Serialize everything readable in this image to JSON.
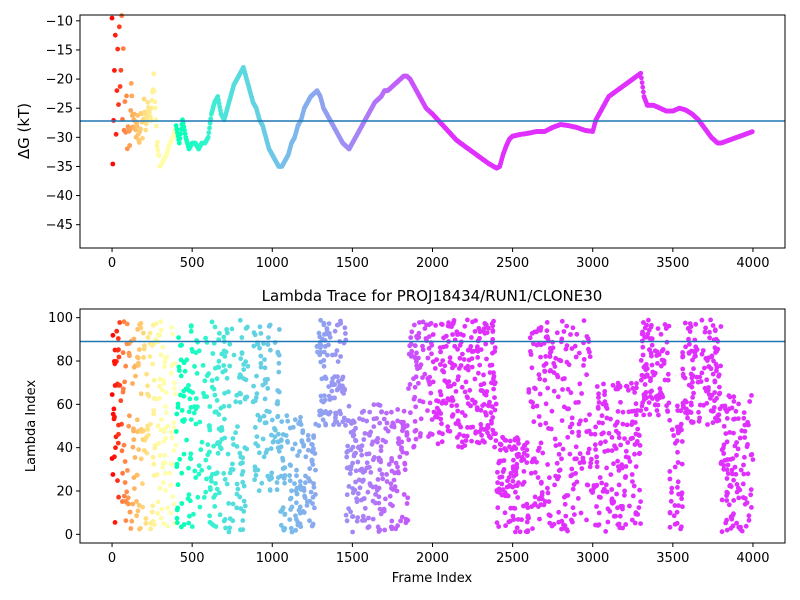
{
  "chart_data": [
    {
      "type": "scatter",
      "title": "",
      "xlabel": "",
      "ylabel": "ΔG (kT)",
      "xlim": [
        -200,
        4200
      ],
      "ylim": [
        -49,
        -9
      ],
      "xticks": [
        0,
        500,
        1000,
        1500,
        2000,
        2500,
        3000,
        3500,
        4000
      ],
      "xtick_labels": [
        "0",
        "500",
        "1000",
        "1500",
        "2000",
        "2500",
        "3000",
        "3500",
        "4000"
      ],
      "yticks": [
        -45,
        -40,
        -35,
        -30,
        -25,
        -20,
        -15,
        -10
      ],
      "ytick_labels": [
        "−45",
        "−40",
        "−35",
        "−30",
        "−25",
        "−20",
        "−15",
        "−10"
      ],
      "hline": -27.2,
      "colormap": "rainbow",
      "color_note": "points colored by current lambda window: red early, through orange/green/cyan/blue, to purple late",
      "points": [
        [
          0,
          -10
        ],
        [
          5,
          -34
        ],
        [
          10,
          -27.5
        ],
        [
          15,
          -20
        ],
        [
          20,
          -13
        ],
        [
          25,
          -30
        ],
        [
          30,
          -21
        ],
        [
          35,
          -16
        ],
        [
          40,
          -25
        ],
        [
          45,
          -12
        ],
        [
          50,
          -22
        ],
        [
          55,
          -18
        ],
        [
          60,
          -10
        ],
        [
          65,
          -26
        ],
        [
          70,
          -15
        ],
        [
          75,
          -28
        ],
        [
          80,
          -23
        ],
        [
          85,
          -30
        ],
        [
          90,
          -24
        ],
        [
          95,
          -33
        ],
        [
          100,
          -27
        ],
        [
          110,
          -31
        ],
        [
          120,
          -22
        ],
        [
          130,
          -28
        ],
        [
          140,
          -25
        ],
        [
          150,
          -30
        ],
        [
          160,
          -27
        ],
        [
          170,
          -32
        ],
        [
          180,
          -26
        ],
        [
          190,
          -29
        ],
        [
          200,
          -24
        ],
        [
          210,
          -28
        ],
        [
          220,
          -26
        ],
        [
          230,
          -24
        ],
        [
          240,
          -27
        ],
        [
          250,
          -23
        ],
        [
          260,
          -20
        ],
        [
          270,
          -26
        ],
        [
          280,
          -30
        ],
        [
          290,
          -33
        ],
        [
          300,
          -35
        ],
        [
          320,
          -34
        ],
        [
          340,
          -33
        ],
        [
          360,
          -31
        ],
        [
          380,
          -30
        ],
        [
          400,
          -28
        ],
        [
          420,
          -31
        ],
        [
          440,
          -27
        ],
        [
          460,
          -30
        ],
        [
          480,
          -32
        ],
        [
          500,
          -31
        ],
        [
          520,
          -31
        ],
        [
          540,
          -32
        ],
        [
          560,
          -31
        ],
        [
          580,
          -31
        ],
        [
          600,
          -30
        ],
        [
          620,
          -26
        ],
        [
          640,
          -24
        ],
        [
          660,
          -23
        ],
        [
          680,
          -26
        ],
        [
          700,
          -27
        ],
        [
          720,
          -25
        ],
        [
          740,
          -23
        ],
        [
          760,
          -21
        ],
        [
          780,
          -20
        ],
        [
          800,
          -19
        ],
        [
          820,
          -18
        ],
        [
          840,
          -20
        ],
        [
          860,
          -22
        ],
        [
          880,
          -24
        ],
        [
          900,
          -25
        ],
        [
          920,
          -27
        ],
        [
          940,
          -28
        ],
        [
          960,
          -30
        ],
        [
          980,
          -32
        ],
        [
          1000,
          -33
        ],
        [
          1020,
          -34
        ],
        [
          1040,
          -35
        ],
        [
          1060,
          -35
        ],
        [
          1080,
          -34
        ],
        [
          1100,
          -33
        ],
        [
          1120,
          -31
        ],
        [
          1140,
          -30
        ],
        [
          1160,
          -28
        ],
        [
          1180,
          -27
        ],
        [
          1200,
          -25
        ],
        [
          1220,
          -24
        ],
        [
          1240,
          -23
        ],
        [
          1260,
          -22.5
        ],
        [
          1280,
          -22
        ],
        [
          1300,
          -23
        ],
        [
          1320,
          -25
        ],
        [
          1340,
          -26
        ],
        [
          1360,
          -27
        ],
        [
          1380,
          -28
        ],
        [
          1400,
          -29
        ],
        [
          1420,
          -30
        ],
        [
          1440,
          -31
        ],
        [
          1460,
          -31.5
        ],
        [
          1480,
          -32
        ],
        [
          1500,
          -31
        ],
        [
          1520,
          -30
        ],
        [
          1540,
          -29
        ],
        [
          1560,
          -28
        ],
        [
          1580,
          -27
        ],
        [
          1600,
          -26
        ],
        [
          1620,
          -25
        ],
        [
          1640,
          -24
        ],
        [
          1660,
          -23.5
        ],
        [
          1680,
          -23
        ],
        [
          1700,
          -22
        ],
        [
          1720,
          -22
        ],
        [
          1740,
          -21.5
        ],
        [
          1760,
          -21
        ],
        [
          1780,
          -20.5
        ],
        [
          1800,
          -20
        ],
        [
          1820,
          -19.5
        ],
        [
          1840,
          -19.5
        ],
        [
          1860,
          -20
        ],
        [
          1880,
          -21
        ],
        [
          1900,
          -22
        ],
        [
          1920,
          -23
        ],
        [
          1940,
          -24
        ],
        [
          1960,
          -25
        ],
        [
          1980,
          -25.5
        ],
        [
          2000,
          -26
        ],
        [
          2050,
          -27.5
        ],
        [
          2100,
          -29
        ],
        [
          2150,
          -30.5
        ],
        [
          2200,
          -31.5
        ],
        [
          2250,
          -32.5
        ],
        [
          2300,
          -33.5
        ],
        [
          2350,
          -34.5
        ],
        [
          2400,
          -35.3
        ],
        [
          2420,
          -35
        ],
        [
          2440,
          -33
        ],
        [
          2460,
          -31.5
        ],
        [
          2480,
          -30.3
        ],
        [
          2500,
          -29.8
        ],
        [
          2550,
          -29.5
        ],
        [
          2600,
          -29.3
        ],
        [
          2650,
          -29
        ],
        [
          2700,
          -29
        ],
        [
          2750,
          -28.3
        ],
        [
          2800,
          -27.8
        ],
        [
          2850,
          -28
        ],
        [
          2900,
          -28.3
        ],
        [
          2950,
          -28.8
        ],
        [
          3000,
          -29
        ],
        [
          3020,
          -27
        ],
        [
          3040,
          -26
        ],
        [
          3060,
          -25
        ],
        [
          3080,
          -24
        ],
        [
          3100,
          -23
        ],
        [
          3150,
          -22
        ],
        [
          3200,
          -21
        ],
        [
          3250,
          -20
        ],
        [
          3300,
          -19
        ],
        [
          3320,
          -23
        ],
        [
          3340,
          -24.5
        ],
        [
          3380,
          -24.5
        ],
        [
          3420,
          -25
        ],
        [
          3460,
          -25.5
        ],
        [
          3500,
          -25.5
        ],
        [
          3540,
          -25
        ],
        [
          3580,
          -25.3
        ],
        [
          3620,
          -26
        ],
        [
          3660,
          -27
        ],
        [
          3700,
          -28.5
        ],
        [
          3740,
          -30
        ],
        [
          3780,
          -31
        ],
        [
          3800,
          -31
        ],
        [
          3850,
          -30.5
        ],
        [
          3900,
          -30
        ],
        [
          3950,
          -29.5
        ],
        [
          4000,
          -29
        ]
      ]
    },
    {
      "type": "scatter",
      "title": "Lambda Trace for PROJ18434/RUN1/CLONE30",
      "xlabel": "Frame Index",
      "ylabel": "Lambda Index",
      "xlim": [
        -200,
        4200
      ],
      "ylim": [
        -4,
        104
      ],
      "xticks": [
        0,
        500,
        1000,
        1500,
        2000,
        2500,
        3000,
        3500,
        4000
      ],
      "xtick_labels": [
        "0",
        "500",
        "1000",
        "1500",
        "2000",
        "2500",
        "3000",
        "3500",
        "4000"
      ],
      "yticks": [
        0,
        20,
        40,
        60,
        80,
        100
      ],
      "ytick_labels": [
        "0",
        "20",
        "40",
        "60",
        "80",
        "100"
      ],
      "hline": 89,
      "colormap": "rainbow",
      "color_note": "points colored from red (low lambda windows visited early) to purple (late frames)",
      "bands": [
        {
          "x_start": 0,
          "x_end": 60,
          "y_low": 5,
          "y_high": 98
        },
        {
          "x_start": 60,
          "x_end": 400,
          "y_low": 2,
          "y_high": 99
        },
        {
          "x_start": 400,
          "x_end": 850,
          "y_low": 1,
          "y_high": 99
        },
        {
          "x_start": 880,
          "x_end": 1050,
          "y_low": 20,
          "y_high": 99
        },
        {
          "x_start": 1050,
          "x_end": 1200,
          "y_low": 1,
          "y_high": 55
        },
        {
          "x_start": 1200,
          "x_end": 1270,
          "y_low": 3,
          "y_high": 50
        },
        {
          "x_start": 1270,
          "x_end": 1460,
          "y_low": 50,
          "y_high": 99
        },
        {
          "x_start": 1460,
          "x_end": 1850,
          "y_low": 1,
          "y_high": 60
        },
        {
          "x_start": 1850,
          "x_end": 2400,
          "y_low": 40,
          "y_high": 99
        },
        {
          "x_start": 2400,
          "x_end": 2600,
          "y_low": 1,
          "y_high": 45
        },
        {
          "x_start": 2600,
          "x_end": 3000,
          "y_low": 1,
          "y_high": 99
        },
        {
          "x_start": 3000,
          "x_end": 3300,
          "y_low": 1,
          "y_high": 70
        },
        {
          "x_start": 3300,
          "x_end": 3480,
          "y_low": 55,
          "y_high": 99
        },
        {
          "x_start": 3480,
          "x_end": 3560,
          "y_low": 1,
          "y_high": 60
        },
        {
          "x_start": 3560,
          "x_end": 3800,
          "y_low": 50,
          "y_high": 99
        },
        {
          "x_start": 3800,
          "x_end": 4000,
          "y_low": 1,
          "y_high": 65
        }
      ]
    }
  ]
}
